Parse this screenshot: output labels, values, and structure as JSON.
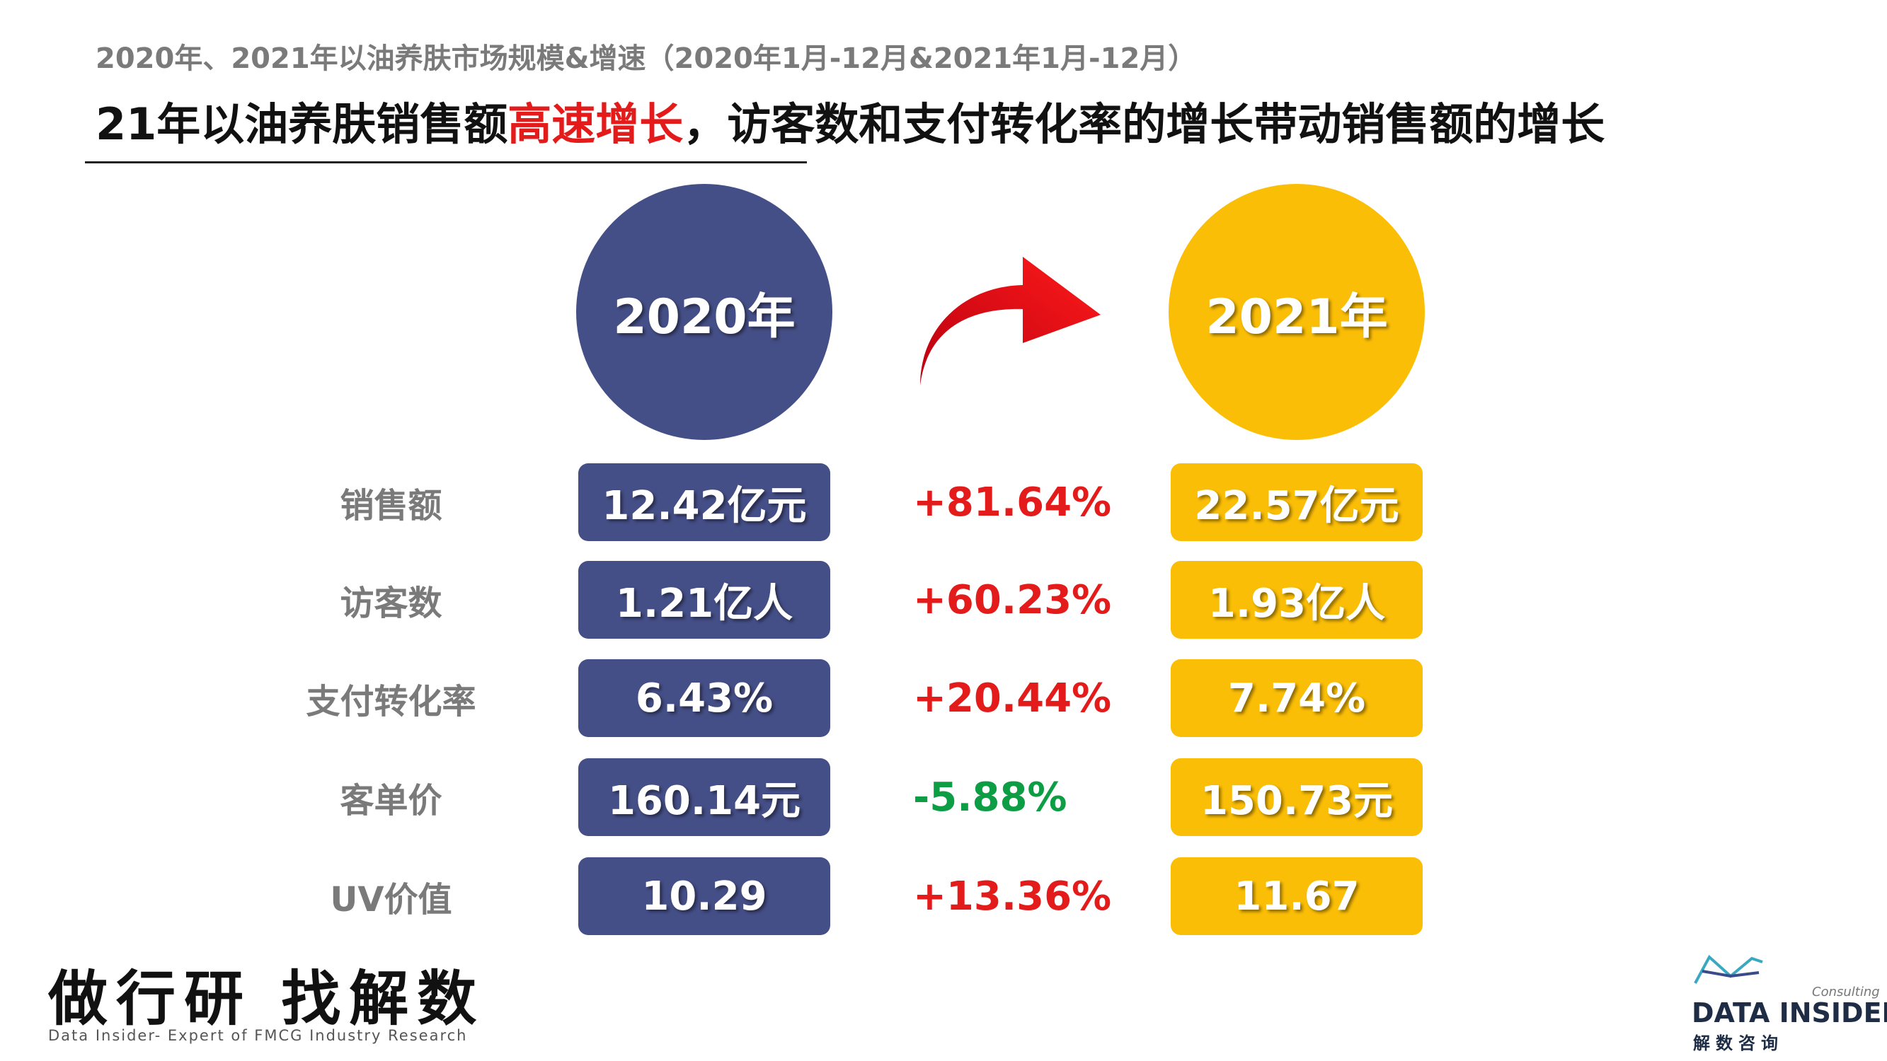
{
  "header": {
    "subtitle": "2020年、2021年以油养肤市场规模&增速（2020年1月-12月&2021年1月-12月）",
    "headline_part1": "21年以油养肤销售额",
    "headline_highlight": "高速增长",
    "headline_part2": "，访客数和支付转化率的增长带动销售额的增长"
  },
  "years": {
    "left": "2020年",
    "right": "2021年"
  },
  "metrics": [
    {
      "label": "销售额",
      "y2020": "12.42亿元",
      "change": "+81.64%",
      "y2021": "22.57亿元"
    },
    {
      "label": "访客数",
      "y2020": "1.21亿人",
      "change": "+60.23%",
      "y2021": "1.93亿人"
    },
    {
      "label": "支付转化率",
      "y2020": "6.43%",
      "change": "+20.44%",
      "y2021": "7.74%"
    },
    {
      "label": "客单价",
      "y2020": "160.14元",
      "change": "-5.88%",
      "y2021": "150.73元"
    },
    {
      "label": "UV价值",
      "y2020": "10.29",
      "change": "+13.36%",
      "y2021": "11.67"
    }
  ],
  "footer": {
    "slogan": "做行研 找解数",
    "slogan_sub": "Data Insider- Expert of FMCG Industry Research",
    "logo_consulting": "Consulting",
    "logo_name": "DATA INSIDER",
    "logo_cn": "解数咨询"
  },
  "colors": {
    "blue": "#454f87",
    "yellow": "#fbbe06",
    "positive_change": "#e31b1b",
    "negative_change": "#0d9e45",
    "arrow": "#e8111b",
    "highlight": "#e31b1b"
  },
  "icons": {
    "arrow": "curved-right-arrow-icon",
    "logo": "data-insider-logo-icon"
  }
}
